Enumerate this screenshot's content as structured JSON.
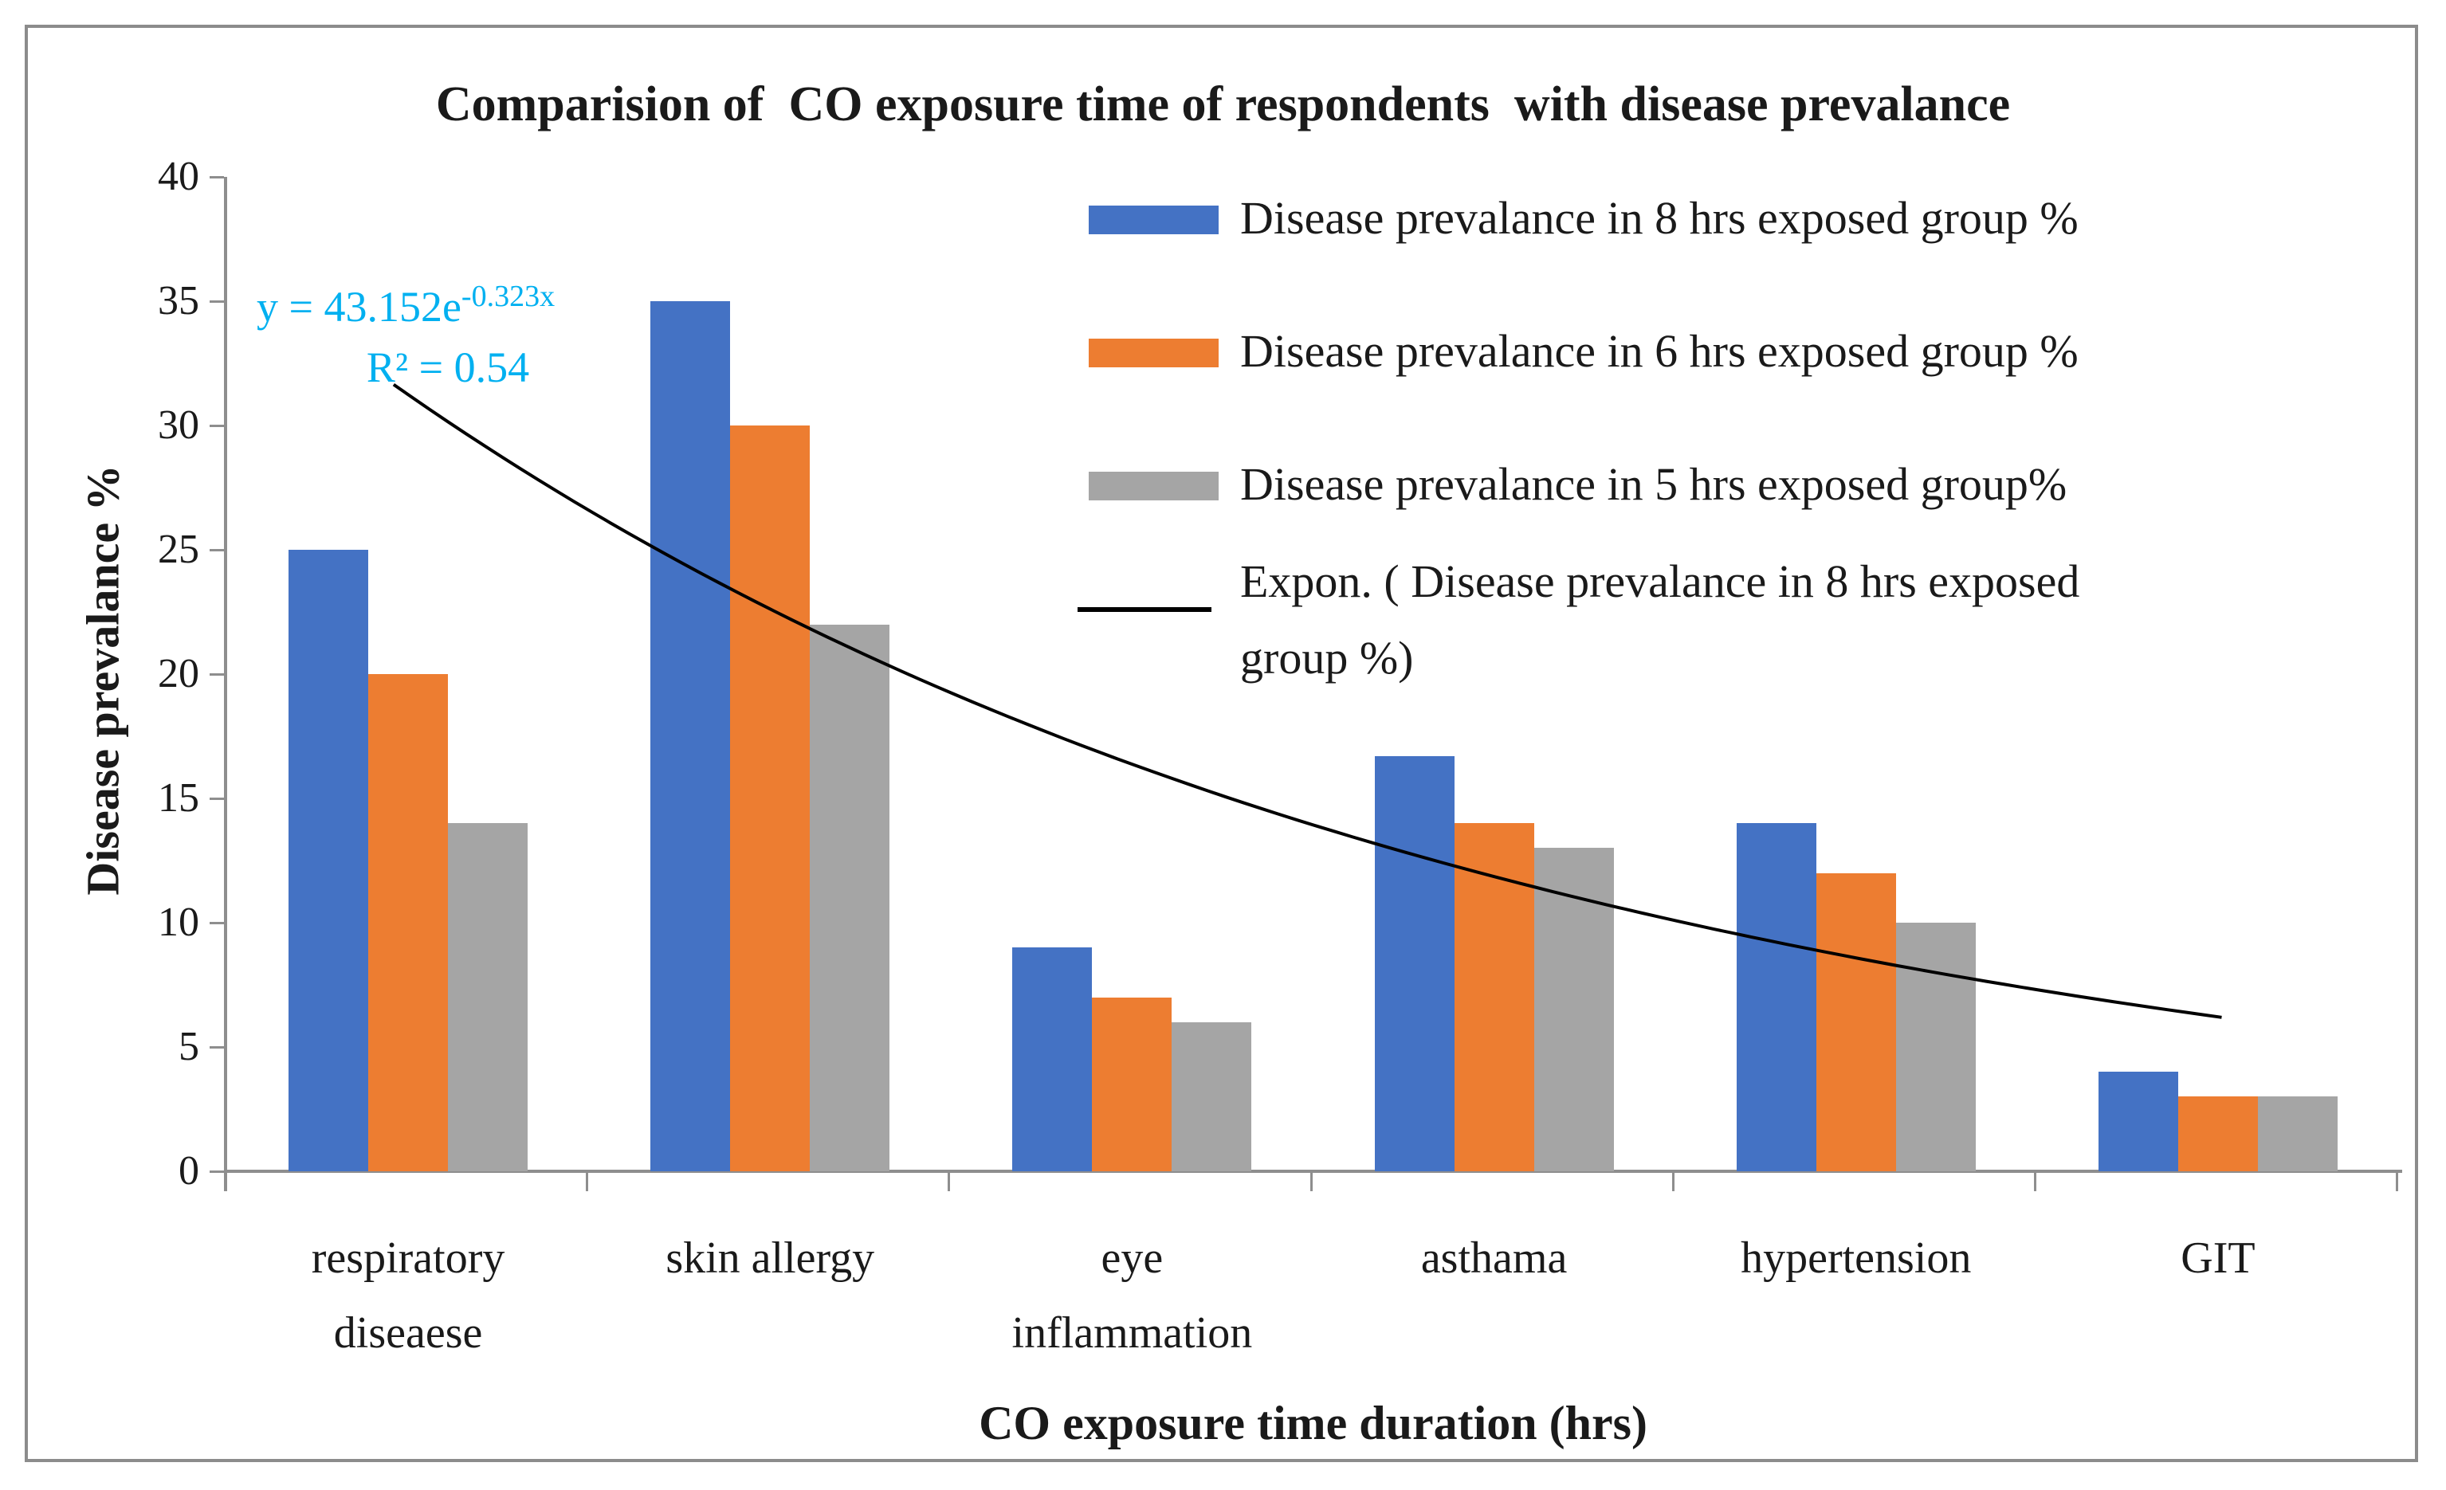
{
  "title": "Comparision of  CO exposure time of respondents  with disease prevalance",
  "y_axis": {
    "title": "Disease prevalance %",
    "ticks": [
      "0",
      "5",
      "10",
      "15",
      "20",
      "25",
      "30",
      "35",
      "40"
    ],
    "max": 40
  },
  "x_axis": {
    "title": "CO exposure time duration (hrs)"
  },
  "annotation": {
    "eq_base": "y = 43.152e",
    "eq_exp": "-0.323x",
    "r2": "R² = 0.54",
    "color": "#00B0F0"
  },
  "legend": [
    {
      "label": "Disease prevalance in 8 hrs exposed group %",
      "swatch": "box",
      "color": "#4472C4"
    },
    {
      "label": "Disease prevalance in 6 hrs exposed group %",
      "swatch": "box",
      "color": "#ED7D31"
    },
    {
      "label": "Disease prevalance in 5 hrs exposed group%",
      "swatch": "box",
      "color": "#A5A5A5"
    },
    {
      "label": "Expon. ( Disease prevalance in 8 hrs exposed\ngroup %)",
      "swatch": "line",
      "color": "#000000"
    }
  ],
  "chart_data": {
    "type": "bar",
    "title": "Comparision of  CO exposure time of respondents  with disease prevalance",
    "xlabel": "CO exposure time duration (hrs)",
    "ylabel": "Disease prevalance %",
    "ylim": [
      0,
      40
    ],
    "grid": false,
    "legend_position": "top-right",
    "categories": [
      "respiratory\ndiseaese",
      "skin allergy",
      "eye\ninflammation",
      "asthama",
      "hypertension",
      "GIT"
    ],
    "series": [
      {
        "name": "Disease prevalance in 8 hrs exposed group %",
        "color": "#4472C4",
        "values": [
          25,
          35,
          9,
          16.7,
          14,
          4
        ]
      },
      {
        "name": "Disease prevalance in 6 hrs exposed group %",
        "color": "#ED7D31",
        "values": [
          20,
          30,
          7,
          14,
          12,
          3
        ]
      },
      {
        "name": "Disease prevalance in 5 hrs exposed group%",
        "color": "#A5A5A5",
        "values": [
          14,
          22,
          6,
          13,
          10,
          3
        ]
      }
    ],
    "trendline": {
      "type": "exponential",
      "label": "Expon. ( Disease prevalance in 8 hrs exposed group %)",
      "a": 43.152,
      "b": -0.323,
      "r2": 0.54,
      "color": "#000000",
      "x_range": [
        0.96,
        6.01
      ]
    }
  },
  "colors": {
    "axis": "#8E8E8E",
    "frame_border": "#8C8C8C",
    "background": "#FFFFFF"
  }
}
